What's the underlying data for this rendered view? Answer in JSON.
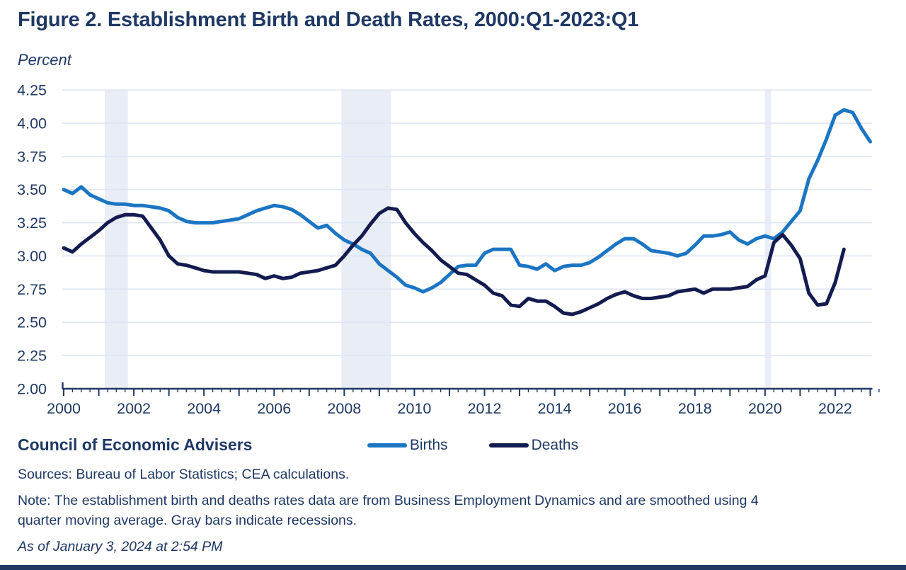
{
  "header": {
    "title": "Figure 2. Establishment Birth and Death Rates, 2000:Q1-2023:Q1",
    "y_axis_unit": "Percent"
  },
  "legend": [
    {
      "label": "Births",
      "color": "#1b75c2"
    },
    {
      "label": "Deaths",
      "color": "#131b4f"
    }
  ],
  "footer": {
    "org": "Council of Economic Advisers",
    "sources": "Sources: Bureau of Labor Statistics; CEA calculations.",
    "note_lines": [
      "Note: The establishment birth and deaths rates data are from Business Employment Dynamics and are smoothed using 4",
      "quarter moving average. Gray bars indicate recessions."
    ],
    "as_of": "As of January 3, 2024 at 2:54 PM"
  },
  "colors": {
    "text_navy": "#1f3864",
    "axis": "#1f3864",
    "gridline": "#dde5f2",
    "recession_bar": "#e9edf6",
    "births_line": "#1b75c2",
    "deaths_line": "#131b4f",
    "bottom_bar": "#1f3864"
  },
  "chart_data": {
    "type": "line",
    "title": "Figure 2. Establishment Birth and Death Rates, 2000:Q1-2023:Q1",
    "xlabel": "",
    "ylabel": "Percent",
    "ylim": [
      2.0,
      4.25
    ],
    "y_ticks": [
      "4.25",
      "4.00",
      "3.75",
      "3.50",
      "3.25",
      "3.00",
      "2.75",
      "2.50",
      "2.25",
      "2.00"
    ],
    "x_tick_labels": [
      "2000",
      "2002",
      "2004",
      "2006",
      "2008",
      "2010",
      "2012",
      "2014",
      "2016",
      "2018",
      "2020",
      "2022"
    ],
    "x_range_years": [
      2000.0,
      2023.25
    ],
    "grid": "horizontal",
    "legend_position": "bottom-center",
    "frequency": "quarterly",
    "recessions_years": [
      {
        "start": 2001.17,
        "end": 2001.83
      },
      {
        "start": 2007.92,
        "end": 2009.33
      },
      {
        "start": 2020.0,
        "end": 2020.17
      }
    ],
    "series": [
      {
        "name": "Births",
        "color": "#1b75c2",
        "start": "2000:Q1",
        "end": "2023:Q1",
        "values": [
          3.5,
          3.47,
          3.52,
          3.46,
          3.43,
          3.4,
          3.39,
          3.39,
          3.38,
          3.38,
          3.37,
          3.36,
          3.34,
          3.29,
          3.26,
          3.25,
          3.25,
          3.25,
          3.26,
          3.27,
          3.28,
          3.31,
          3.34,
          3.36,
          3.38,
          3.37,
          3.35,
          3.31,
          3.26,
          3.21,
          3.23,
          3.17,
          3.12,
          3.09,
          3.05,
          3.02,
          2.94,
          2.89,
          2.84,
          2.78,
          2.76,
          2.73,
          2.76,
          2.8,
          2.86,
          2.92,
          2.93,
          2.93,
          3.02,
          3.05,
          3.05,
          3.05,
          2.93,
          2.92,
          2.9,
          2.94,
          2.89,
          2.92,
          2.93,
          2.93,
          2.95,
          2.99,
          3.04,
          3.09,
          3.13,
          3.13,
          3.09,
          3.04,
          3.03,
          3.02,
          3.0,
          3.02,
          3.08,
          3.15,
          3.15,
          3.16,
          3.18,
          3.12,
          3.09,
          3.13,
          3.15,
          3.13,
          3.18,
          3.26,
          3.34,
          3.58,
          3.72,
          3.88,
          4.06,
          4.1,
          4.08,
          3.96,
          3.86
        ]
      },
      {
        "name": "Deaths",
        "color": "#131b4f",
        "start": "2000:Q1",
        "end": "2022:Q2",
        "values": [
          3.06,
          3.03,
          3.09,
          3.14,
          3.19,
          3.25,
          3.29,
          3.31,
          3.31,
          3.3,
          3.21,
          3.12,
          3.0,
          2.94,
          2.93,
          2.91,
          2.89,
          2.88,
          2.88,
          2.88,
          2.88,
          2.87,
          2.86,
          2.83,
          2.85,
          2.83,
          2.84,
          2.87,
          2.88,
          2.89,
          2.91,
          2.93,
          3.0,
          3.08,
          3.15,
          3.24,
          3.32,
          3.36,
          3.35,
          3.25,
          3.17,
          3.1,
          3.04,
          2.97,
          2.92,
          2.87,
          2.86,
          2.82,
          2.78,
          2.72,
          2.7,
          2.63,
          2.62,
          2.68,
          2.66,
          2.66,
          2.62,
          2.57,
          2.56,
          2.58,
          2.61,
          2.64,
          2.68,
          2.71,
          2.73,
          2.7,
          2.68,
          2.68,
          2.69,
          2.7,
          2.73,
          2.74,
          2.75,
          2.72,
          2.75,
          2.75,
          2.75,
          2.76,
          2.77,
          2.82,
          2.85,
          3.1,
          3.16,
          3.08,
          2.98,
          2.72,
          2.63,
          2.64,
          2.8,
          3.05
        ]
      }
    ]
  }
}
